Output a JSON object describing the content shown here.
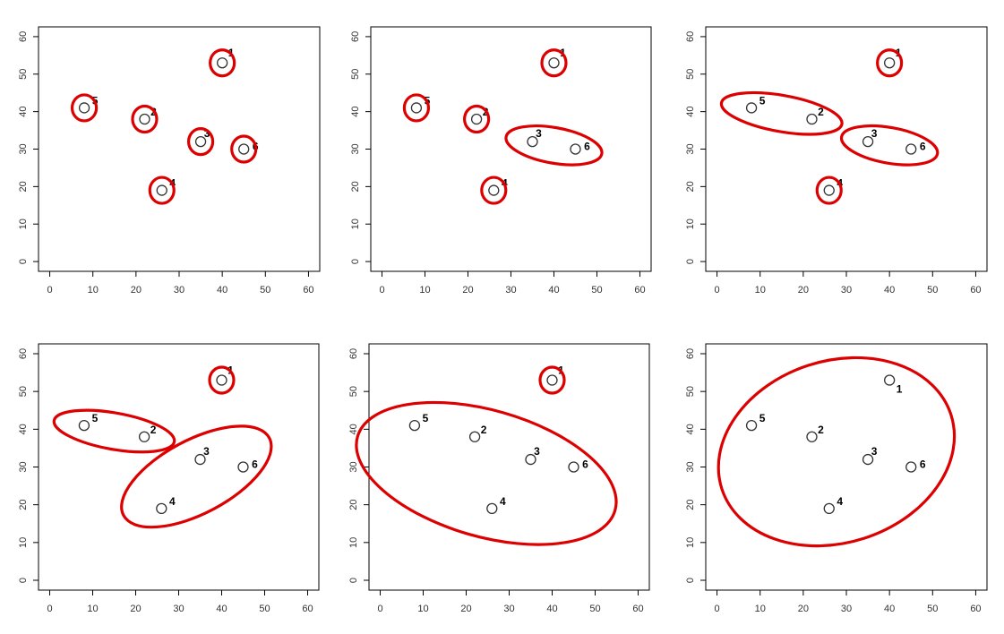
{
  "chart_data": [
    {
      "type": "scatter",
      "panel": 1,
      "xlim": [
        0,
        60
      ],
      "ylim": [
        0,
        60
      ],
      "x_ticks": [
        0,
        10,
        20,
        30,
        40,
        50,
        60
      ],
      "y_ticks": [
        0,
        10,
        20,
        30,
        40,
        50,
        60
      ],
      "points": [
        {
          "label": "1",
          "x": 40,
          "y": 53
        },
        {
          "label": "2",
          "x": 22,
          "y": 38
        },
        {
          "label": "3",
          "x": 35,
          "y": 32
        },
        {
          "label": "4",
          "x": 26,
          "y": 19
        },
        {
          "label": "5",
          "x": 8,
          "y": 41
        },
        {
          "label": "6",
          "x": 45,
          "y": 30
        }
      ],
      "clusters": [
        [
          "1"
        ],
        [
          "2"
        ],
        [
          "3"
        ],
        [
          "4"
        ],
        [
          "5"
        ],
        [
          "6"
        ]
      ],
      "cluster_color": "#dd0000"
    },
    {
      "type": "scatter",
      "panel": 2,
      "xlim": [
        0,
        60
      ],
      "ylim": [
        0,
        60
      ],
      "x_ticks": [
        0,
        10,
        20,
        30,
        40,
        50,
        60
      ],
      "y_ticks": [
        0,
        10,
        20,
        30,
        40,
        50,
        60
      ],
      "points": [
        {
          "label": "1",
          "x": 40,
          "y": 53
        },
        {
          "label": "2",
          "x": 22,
          "y": 38
        },
        {
          "label": "3",
          "x": 35,
          "y": 32
        },
        {
          "label": "4",
          "x": 26,
          "y": 19
        },
        {
          "label": "5",
          "x": 8,
          "y": 41
        },
        {
          "label": "6",
          "x": 45,
          "y": 30
        }
      ],
      "clusters": [
        [
          "1"
        ],
        [
          "2"
        ],
        [
          "3",
          "6"
        ],
        [
          "4"
        ],
        [
          "5"
        ]
      ],
      "cluster_color": "#dd0000"
    },
    {
      "type": "scatter",
      "panel": 3,
      "xlim": [
        0,
        60
      ],
      "ylim": [
        0,
        60
      ],
      "x_ticks": [
        0,
        10,
        20,
        30,
        40,
        50,
        60
      ],
      "y_ticks": [
        0,
        10,
        20,
        30,
        40,
        50,
        60
      ],
      "points": [
        {
          "label": "1",
          "x": 40,
          "y": 53
        },
        {
          "label": "2",
          "x": 22,
          "y": 38
        },
        {
          "label": "3",
          "x": 35,
          "y": 32
        },
        {
          "label": "4",
          "x": 26,
          "y": 19
        },
        {
          "label": "5",
          "x": 8,
          "y": 41
        },
        {
          "label": "6",
          "x": 45,
          "y": 30
        }
      ],
      "clusters": [
        [
          "1"
        ],
        [
          "5",
          "2"
        ],
        [
          "3",
          "6"
        ],
        [
          "4"
        ]
      ],
      "cluster_color": "#dd0000"
    },
    {
      "type": "scatter",
      "panel": 4,
      "xlim": [
        0,
        60
      ],
      "ylim": [
        0,
        60
      ],
      "x_ticks": [
        0,
        10,
        20,
        30,
        40,
        50,
        60
      ],
      "y_ticks": [
        0,
        10,
        20,
        30,
        40,
        50,
        60
      ],
      "points": [
        {
          "label": "1",
          "x": 40,
          "y": 53
        },
        {
          "label": "2",
          "x": 22,
          "y": 38
        },
        {
          "label": "3",
          "x": 35,
          "y": 32
        },
        {
          "label": "4",
          "x": 26,
          "y": 19
        },
        {
          "label": "5",
          "x": 8,
          "y": 41
        },
        {
          "label": "6",
          "x": 45,
          "y": 30
        }
      ],
      "clusters": [
        [
          "1"
        ],
        [
          "5",
          "2"
        ],
        [
          "3",
          "6",
          "4"
        ]
      ],
      "cluster_color": "#dd0000"
    },
    {
      "type": "scatter",
      "panel": 5,
      "xlim": [
        0,
        60
      ],
      "ylim": [
        0,
        60
      ],
      "x_ticks": [
        0,
        10,
        20,
        30,
        40,
        50,
        60
      ],
      "y_ticks": [
        0,
        10,
        20,
        30,
        40,
        50,
        60
      ],
      "points": [
        {
          "label": "1",
          "x": 40,
          "y": 53
        },
        {
          "label": "2",
          "x": 22,
          "y": 38
        },
        {
          "label": "3",
          "x": 35,
          "y": 32
        },
        {
          "label": "4",
          "x": 26,
          "y": 19
        },
        {
          "label": "5",
          "x": 8,
          "y": 41
        },
        {
          "label": "6",
          "x": 45,
          "y": 30
        }
      ],
      "clusters": [
        [
          "1"
        ],
        [
          "5",
          "2",
          "3",
          "6",
          "4"
        ]
      ],
      "cluster_color": "#dd0000"
    },
    {
      "type": "scatter",
      "panel": 6,
      "xlim": [
        0,
        60
      ],
      "ylim": [
        0,
        60
      ],
      "x_ticks": [
        0,
        10,
        20,
        30,
        40,
        50,
        60
      ],
      "y_ticks": [
        0,
        10,
        20,
        30,
        40,
        50,
        60
      ],
      "points": [
        {
          "label": "1",
          "x": 40,
          "y": 53
        },
        {
          "label": "2",
          "x": 22,
          "y": 38
        },
        {
          "label": "3",
          "x": 35,
          "y": 32
        },
        {
          "label": "4",
          "x": 26,
          "y": 19
        },
        {
          "label": "5",
          "x": 8,
          "y": 41
        },
        {
          "label": "6",
          "x": 45,
          "y": 30
        }
      ],
      "clusters": [
        [
          "1",
          "2",
          "3",
          "4",
          "5",
          "6"
        ]
      ],
      "cluster_color": "#dd0000"
    }
  ]
}
